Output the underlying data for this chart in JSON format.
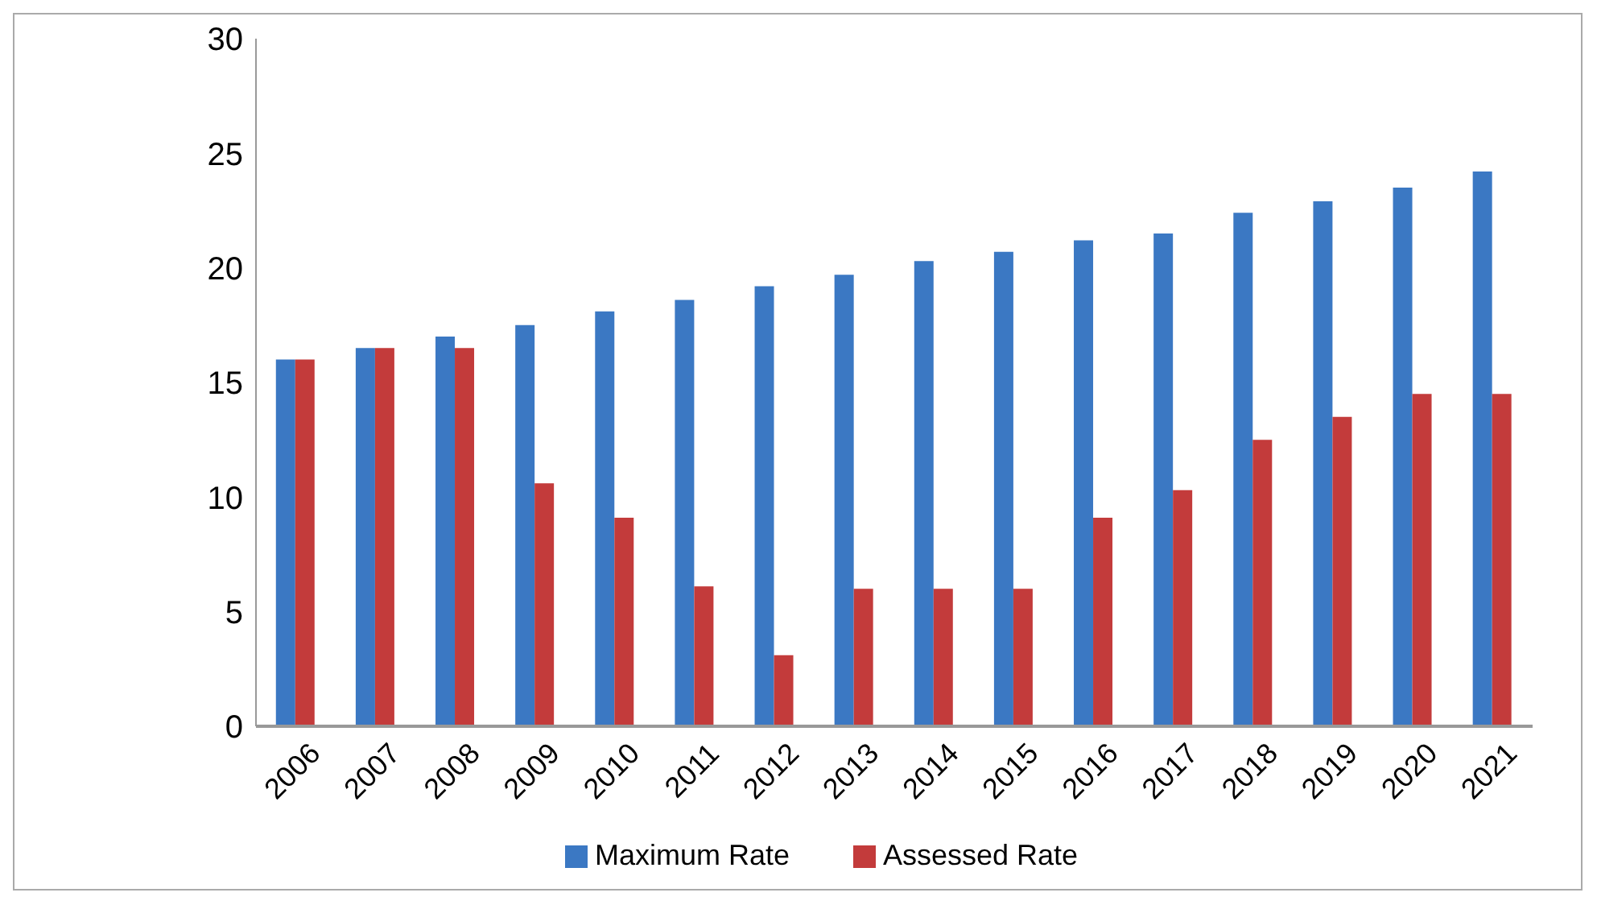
{
  "chart_data": {
    "type": "bar",
    "categories": [
      "2006",
      "2007",
      "2008",
      "2009",
      "2010",
      "2011",
      "2012",
      "2013",
      "2014",
      "2015",
      "2016",
      "2017",
      "2018",
      "2019",
      "2020",
      "2021"
    ],
    "series": [
      {
        "name": "Maximum Rate",
        "color": "#3b78c3",
        "values": [
          16,
          16.5,
          17,
          17.5,
          18.1,
          18.6,
          19.2,
          19.7,
          20.3,
          20.7,
          21.2,
          21.5,
          22.4,
          22.9,
          23.5,
          24.2
        ]
      },
      {
        "name": "Assessed Rate",
        "color": "#c33b3b",
        "values": [
          16,
          16.5,
          16.5,
          10.6,
          9.1,
          6.1,
          3.1,
          6,
          6,
          6,
          9.1,
          10.3,
          12.5,
          13.5,
          14.5,
          14.5
        ]
      }
    ],
    "ylim": [
      0,
      30
    ],
    "yticks": [
      0,
      5,
      10,
      15,
      20,
      25,
      30
    ],
    "grid": false,
    "legend": "bottom"
  }
}
